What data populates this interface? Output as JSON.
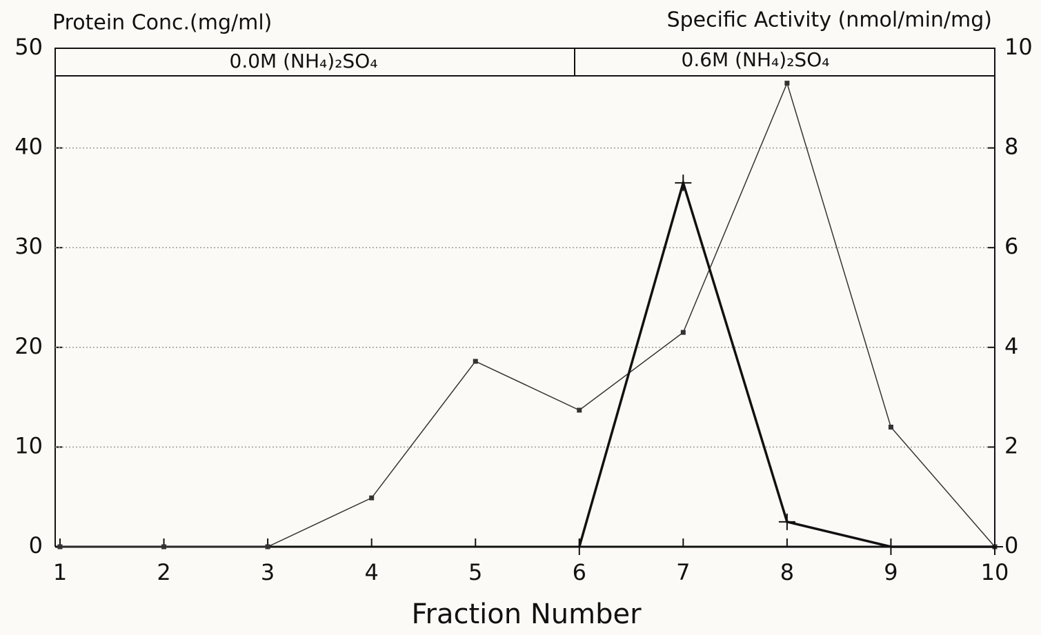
{
  "chart_data": {
    "type": "line",
    "y_label": "Protein Conc.(mg/ml)",
    "y2_label": "Specific Activity (nmol/min/mg)",
    "x_label": "Fraction Number",
    "annotations": [
      "0.0M (NH₄)₂SO₄",
      "0.6M (NH₄)₂SO₄"
    ],
    "x": [
      1,
      2,
      3,
      4,
      5,
      6,
      7,
      8,
      9,
      10
    ],
    "series": [
      {
        "color": "#333333",
        "marker": "square",
        "linewidth": 1.5,
        "values": [
          0,
          0,
          0,
          4.9,
          18.6,
          13.7,
          21.5,
          46.5,
          12.0,
          0
        ]
      },
      {
        "color": "#111111",
        "marker": "plus",
        "linewidth": 3.5,
        "axis": "y2",
        "values": [
          null,
          null,
          null,
          null,
          null,
          0,
          7.3,
          0.5,
          0,
          0
        ]
      }
    ],
    "xlim": [
      1,
      10
    ],
    "xticks": [
      1,
      2,
      3,
      4,
      5,
      6,
      7,
      8,
      9,
      10
    ],
    "ylim": [
      0,
      50
    ],
    "yticks": [
      0,
      10,
      20,
      30,
      40,
      50
    ],
    "y2lim": [
      0,
      10
    ],
    "y2ticks": [
      0,
      2,
      4,
      6,
      8,
      10
    ],
    "grid": true
  }
}
